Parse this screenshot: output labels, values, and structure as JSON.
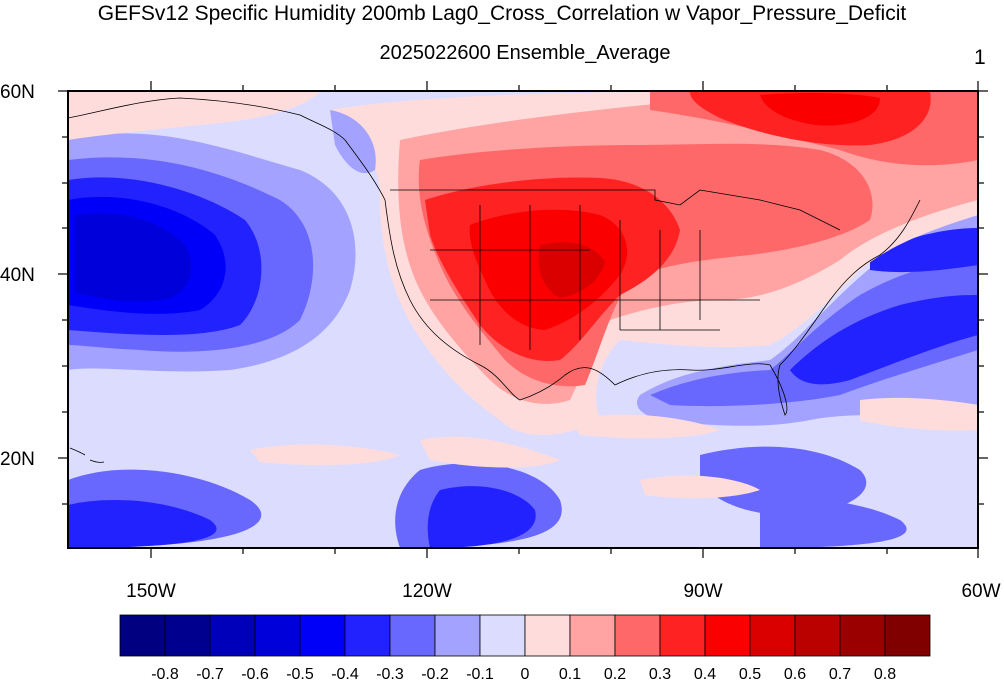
{
  "title": "GEFSv12 Specific Humidity 200mb Lag0_Cross_Correlation w Vapor_Pressure_Deficit",
  "subtitle": "2025022600 Ensemble_Average",
  "panel_label": "1",
  "lat_labels": [
    "60N",
    "40N",
    "20N"
  ],
  "lon_labels": [
    "150W",
    "120W",
    "90W",
    "60W"
  ],
  "colorbar": {
    "tick_labels": [
      "-0.8",
      "-0.7",
      "-0.6",
      "-0.5",
      "-0.4",
      "-0.3",
      "-0.2",
      "-0.1",
      "0",
      "0.1",
      "0.2",
      "0.3",
      "0.4",
      "0.5",
      "0.6",
      "0.7",
      "0.8"
    ],
    "colors": [
      "#000080",
      "#00008f",
      "#0000bb",
      "#0000db",
      "#0000fa",
      "#2222ff",
      "#6868ff",
      "#a3a3ff",
      "#dcdcff",
      "#ffdcdc",
      "#ffa3a3",
      "#ff6868",
      "#ff2222",
      "#fa0000",
      "#db0000",
      "#bb0000",
      "#9b0000",
      "#800000"
    ]
  },
  "map": {
    "projection": "cylindrical equidistant",
    "lon_range": [
      -159,
      -60
    ],
    "lat_range": [
      10,
      60
    ],
    "field": "Lag0 cross-correlation coefficient"
  }
}
